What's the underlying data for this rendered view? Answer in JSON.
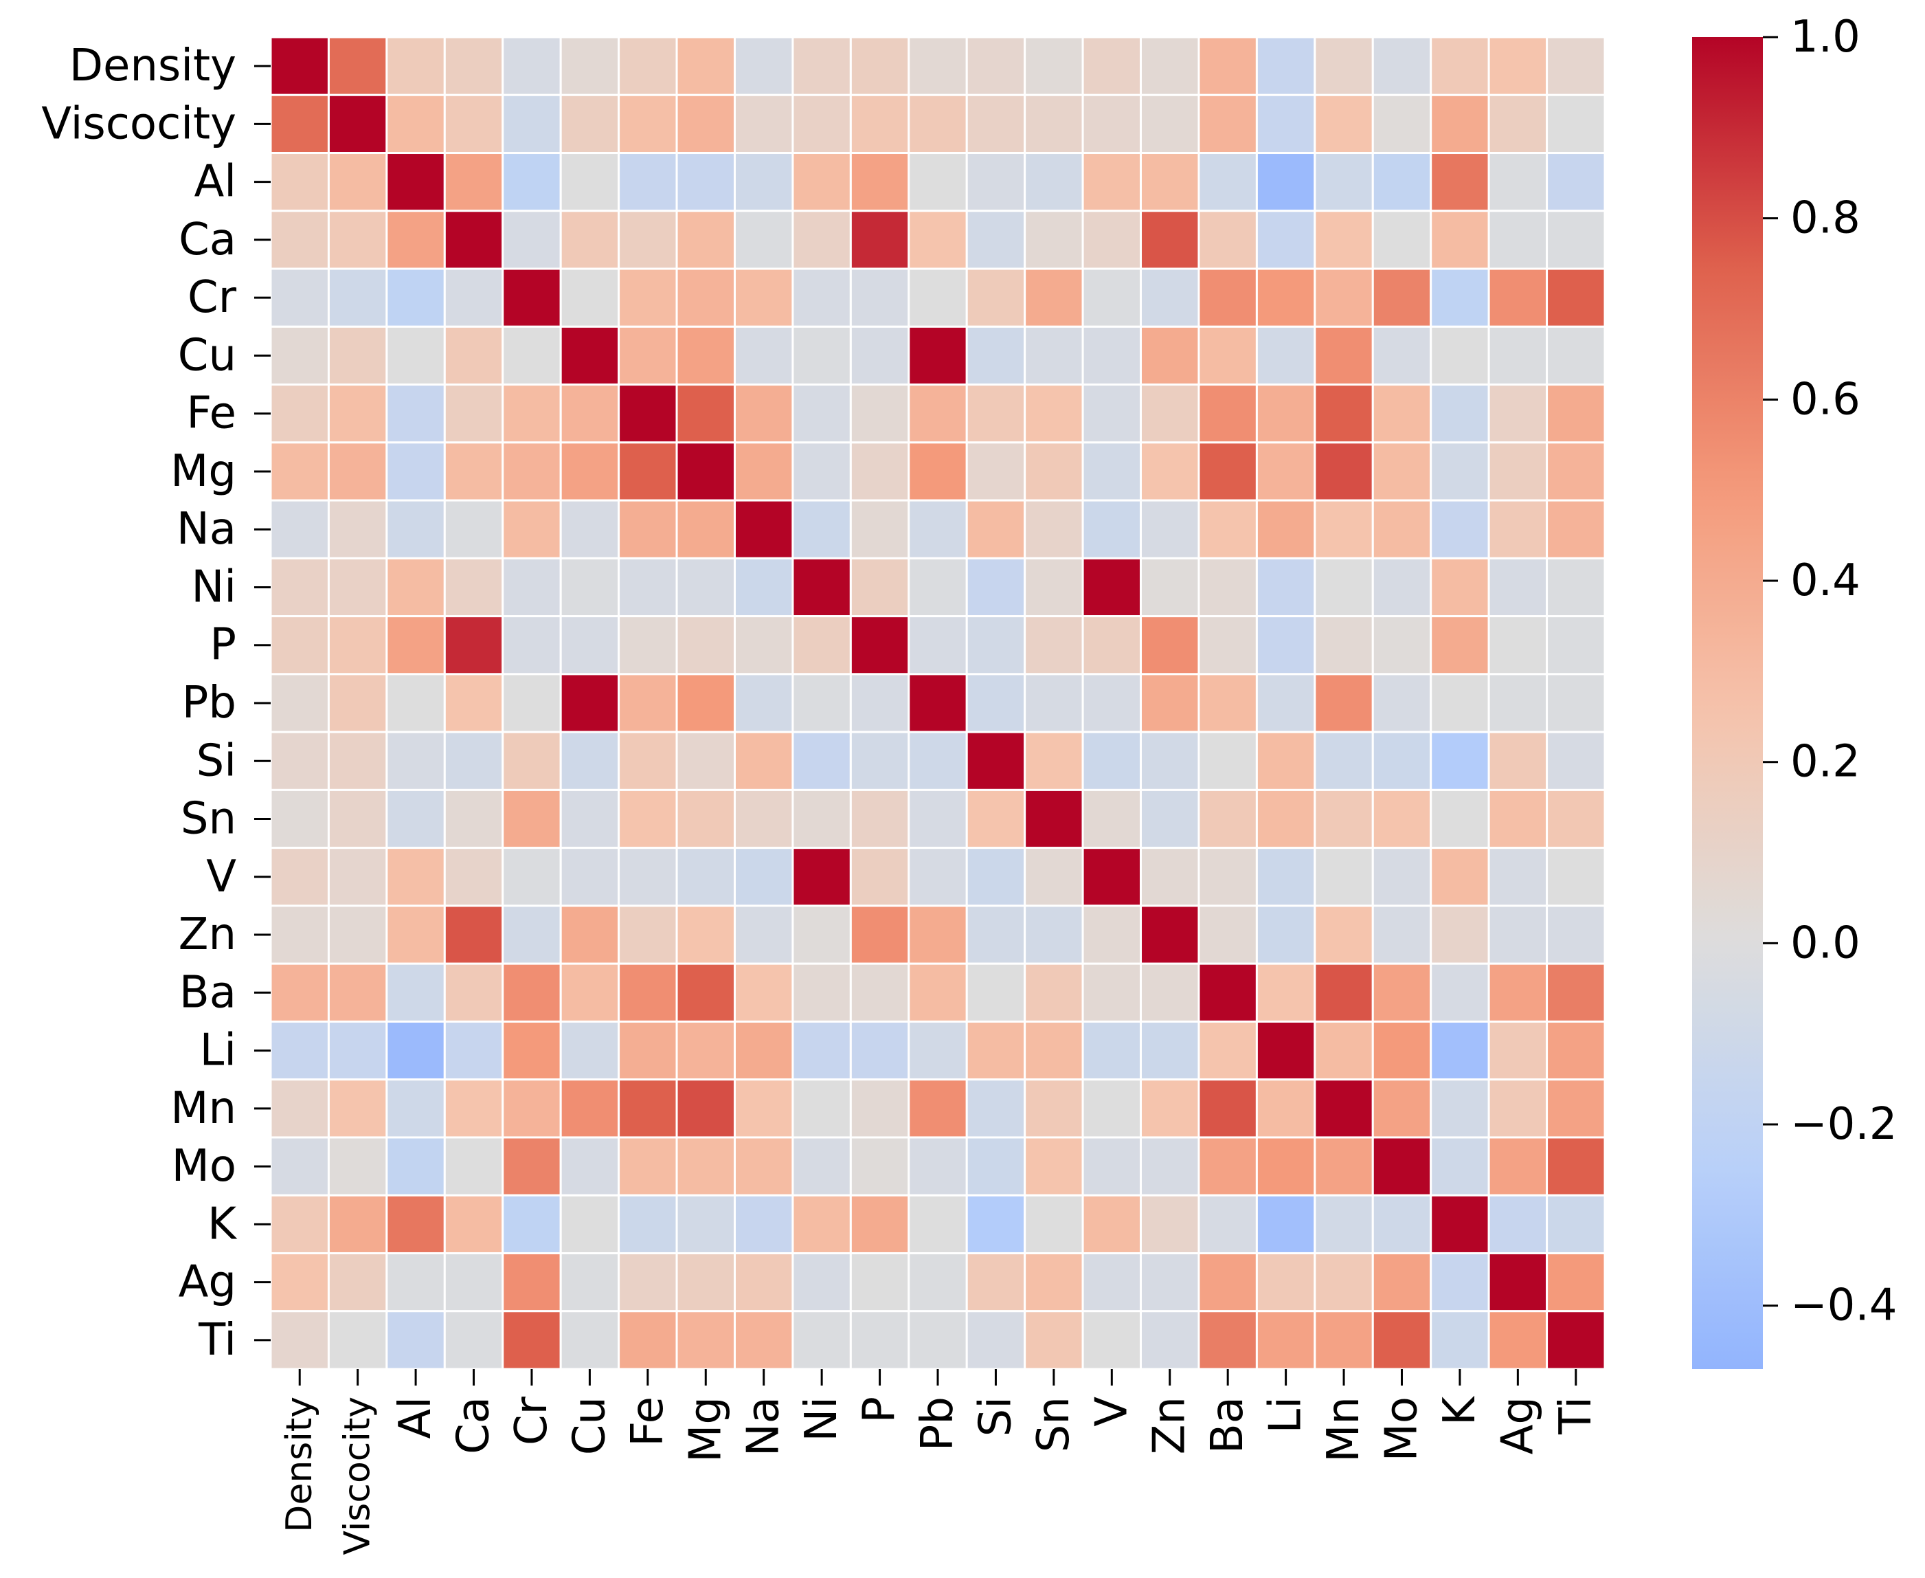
{
  "chart_data": {
    "type": "heatmap",
    "title": "",
    "xlabel": "",
    "ylabel": "",
    "colormap": "coolwarm",
    "vmin": -0.47,
    "vmax": 1.0,
    "labels": [
      "Density",
      "Viscocity",
      "Al",
      "Ca",
      "Cr",
      "Cu",
      "Fe",
      "Mg",
      "Na",
      "Ni",
      "P",
      "Pb",
      "Si",
      "Sn",
      "V",
      "Zn",
      "Ba",
      "Li",
      "Mn",
      "Mo",
      "K",
      "Ag",
      "Ti"
    ],
    "colorbar": {
      "ticks": [
        1.0,
        0.8,
        0.6,
        0.4,
        0.2,
        0.0,
        -0.2,
        -0.4
      ],
      "tick_labels": [
        "1.0",
        "0.8",
        "0.6",
        "0.4",
        "0.2",
        "0.0",
        "−0.2",
        "−0.4"
      ]
    },
    "matrix": [
      [
        1.0,
        0.7,
        0.18,
        0.15,
        -0.05,
        0.05,
        0.15,
        0.3,
        -0.05,
        0.12,
        0.15,
        0.05,
        0.08,
        0.03,
        0.12,
        0.05,
        0.35,
        -0.15,
        0.1,
        -0.05,
        0.2,
        0.25,
        0.08
      ],
      [
        0.7,
        1.0,
        0.3,
        0.2,
        -0.1,
        0.15,
        0.28,
        0.35,
        0.08,
        0.12,
        0.22,
        0.2,
        0.12,
        0.1,
        0.08,
        0.05,
        0.35,
        -0.15,
        0.25,
        0.02,
        0.4,
        0.15,
        0.0
      ],
      [
        0.18,
        0.3,
        1.0,
        0.45,
        -0.2,
        0.0,
        -0.15,
        -0.15,
        -0.1,
        0.3,
        0.45,
        0.0,
        -0.05,
        -0.08,
        0.28,
        0.3,
        -0.1,
        -0.42,
        -0.1,
        -0.18,
        0.65,
        -0.02,
        -0.15
      ],
      [
        0.15,
        0.2,
        0.45,
        1.0,
        -0.05,
        0.2,
        0.15,
        0.3,
        -0.02,
        0.12,
        0.9,
        0.25,
        -0.08,
        0.05,
        0.1,
        0.78,
        0.2,
        -0.15,
        0.25,
        0.0,
        0.3,
        -0.02,
        -0.02
      ],
      [
        -0.05,
        -0.1,
        -0.2,
        -0.05,
        1.0,
        0.0,
        0.3,
        0.35,
        0.3,
        -0.05,
        -0.05,
        0.0,
        0.18,
        0.4,
        -0.02,
        -0.08,
        0.55,
        0.5,
        0.35,
        0.6,
        -0.2,
        0.55,
        0.75
      ],
      [
        0.05,
        0.15,
        0.0,
        0.2,
        0.0,
        1.0,
        0.35,
        0.45,
        -0.05,
        -0.02,
        -0.05,
        1.0,
        -0.1,
        -0.05,
        -0.05,
        0.4,
        0.3,
        -0.08,
        0.55,
        -0.05,
        0.0,
        -0.02,
        -0.02
      ],
      [
        0.15,
        0.28,
        -0.15,
        0.15,
        0.3,
        0.35,
        1.0,
        0.75,
        0.38,
        -0.05,
        0.05,
        0.35,
        0.2,
        0.25,
        -0.05,
        0.15,
        0.55,
        0.38,
        0.75,
        0.3,
        -0.12,
        0.12,
        0.4
      ],
      [
        0.3,
        0.35,
        -0.15,
        0.3,
        0.35,
        0.45,
        0.75,
        1.0,
        0.4,
        -0.05,
        0.1,
        0.5,
        0.08,
        0.2,
        -0.08,
        0.25,
        0.75,
        0.35,
        0.8,
        0.3,
        -0.08,
        0.15,
        0.35
      ],
      [
        -0.05,
        0.08,
        -0.1,
        -0.02,
        0.3,
        -0.05,
        0.38,
        0.4,
        1.0,
        -0.12,
        0.05,
        -0.08,
        0.3,
        0.1,
        -0.12,
        -0.05,
        0.25,
        0.4,
        0.25,
        0.3,
        -0.15,
        0.2,
        0.35
      ],
      [
        0.12,
        0.12,
        0.3,
        0.12,
        -0.05,
        -0.02,
        -0.05,
        -0.05,
        -0.12,
        1.0,
        0.15,
        -0.02,
        -0.15,
        0.05,
        1.0,
        0.02,
        0.05,
        -0.15,
        0.0,
        -0.05,
        0.3,
        -0.05,
        -0.02
      ],
      [
        0.15,
        0.22,
        0.45,
        0.9,
        -0.05,
        -0.05,
        0.05,
        0.1,
        0.05,
        0.15,
        1.0,
        -0.05,
        -0.08,
        0.12,
        0.15,
        0.55,
        0.05,
        -0.15,
        0.05,
        0.02,
        0.4,
        0.0,
        -0.02
      ],
      [
        0.05,
        0.2,
        0.0,
        0.25,
        0.0,
        1.0,
        0.35,
        0.5,
        -0.08,
        -0.02,
        -0.05,
        1.0,
        -0.1,
        -0.05,
        -0.05,
        0.4,
        0.3,
        -0.08,
        0.55,
        -0.05,
        0.0,
        -0.02,
        -0.02
      ],
      [
        0.08,
        0.12,
        -0.05,
        -0.08,
        0.18,
        -0.1,
        0.2,
        0.08,
        0.3,
        -0.15,
        -0.08,
        -0.1,
        1.0,
        0.25,
        -0.12,
        -0.08,
        0.0,
        0.3,
        -0.1,
        -0.12,
        -0.28,
        0.2,
        -0.05
      ],
      [
        0.03,
        0.1,
        -0.08,
        0.05,
        0.4,
        -0.05,
        0.25,
        0.2,
        0.1,
        0.05,
        0.12,
        -0.05,
        0.25,
        1.0,
        0.05,
        -0.08,
        0.2,
        0.3,
        0.2,
        0.25,
        0.0,
        0.28,
        0.22
      ],
      [
        0.12,
        0.08,
        0.28,
        0.1,
        -0.02,
        -0.05,
        -0.05,
        -0.08,
        -0.12,
        1.0,
        0.15,
        -0.05,
        -0.12,
        0.05,
        1.0,
        0.05,
        0.05,
        -0.12,
        0.0,
        -0.05,
        0.3,
        -0.05,
        0.0
      ],
      [
        0.05,
        0.05,
        0.3,
        0.78,
        -0.08,
        0.4,
        0.15,
        0.25,
        -0.05,
        0.02,
        0.55,
        0.4,
        -0.08,
        -0.08,
        0.05,
        1.0,
        0.05,
        -0.12,
        0.25,
        -0.05,
        0.1,
        -0.05,
        -0.05
      ],
      [
        0.35,
        0.35,
        -0.1,
        0.2,
        0.55,
        0.3,
        0.55,
        0.75,
        0.25,
        0.05,
        0.05,
        0.3,
        0.0,
        0.2,
        0.05,
        0.05,
        1.0,
        0.25,
        0.78,
        0.45,
        -0.05,
        0.45,
        0.62
      ],
      [
        -0.15,
        -0.15,
        -0.42,
        -0.15,
        0.5,
        -0.08,
        0.38,
        0.35,
        0.4,
        -0.15,
        -0.15,
        -0.08,
        0.3,
        0.3,
        -0.12,
        -0.12,
        0.25,
        1.0,
        0.3,
        0.5,
        -0.38,
        0.2,
        0.45
      ],
      [
        0.1,
        0.25,
        -0.1,
        0.25,
        0.35,
        0.55,
        0.75,
        0.8,
        0.25,
        0.0,
        0.05,
        0.55,
        -0.1,
        0.2,
        0.0,
        0.25,
        0.78,
        0.3,
        1.0,
        0.45,
        -0.08,
        0.2,
        0.45
      ],
      [
        -0.05,
        0.02,
        -0.18,
        0.0,
        0.6,
        -0.05,
        0.3,
        0.3,
        0.3,
        -0.05,
        0.02,
        -0.05,
        -0.12,
        0.25,
        -0.05,
        -0.05,
        0.45,
        0.5,
        0.45,
        1.0,
        -0.1,
        0.45,
        0.75
      ],
      [
        0.2,
        0.4,
        0.65,
        0.3,
        -0.2,
        0.0,
        -0.12,
        -0.08,
        -0.15,
        0.3,
        0.4,
        0.0,
        -0.28,
        0.0,
        0.3,
        0.1,
        -0.05,
        -0.38,
        -0.08,
        -0.1,
        1.0,
        -0.15,
        -0.12
      ],
      [
        0.25,
        0.15,
        -0.02,
        -0.02,
        0.55,
        -0.02,
        0.12,
        0.15,
        0.2,
        -0.05,
        0.0,
        -0.02,
        0.2,
        0.28,
        -0.05,
        -0.05,
        0.45,
        0.2,
        0.2,
        0.45,
        -0.15,
        1.0,
        0.5
      ],
      [
        0.08,
        0.0,
        -0.15,
        -0.02,
        0.75,
        -0.02,
        0.4,
        0.35,
        0.35,
        -0.02,
        -0.02,
        -0.02,
        -0.05,
        0.22,
        0.0,
        -0.05,
        0.62,
        0.45,
        0.45,
        0.75,
        -0.12,
        0.5,
        1.0
      ]
    ]
  }
}
